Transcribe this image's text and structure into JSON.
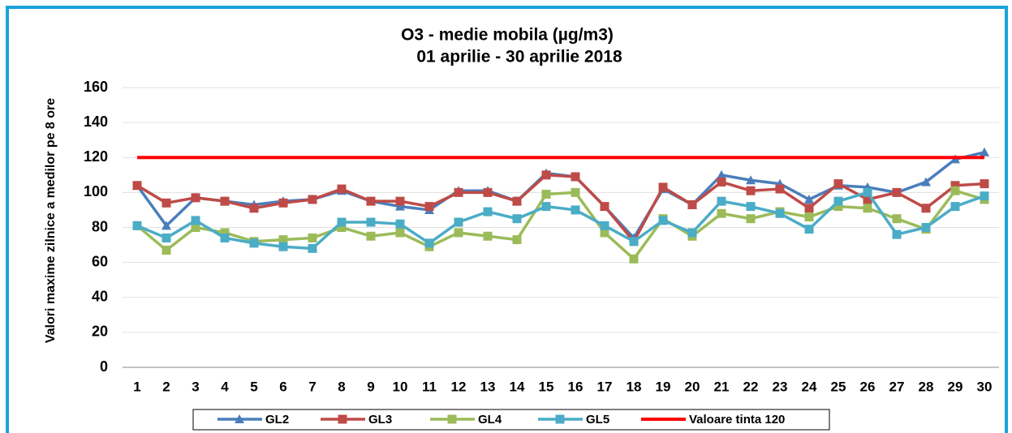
{
  "chart_data": {
    "type": "line",
    "title": "O3 - medie mobila (µg/m3)",
    "subtitle": "01 aprilie - 30 aprilie 2018",
    "y_label": "Valori maxime zilnice a medilor pe 8 ore",
    "categories": [
      "1",
      "2",
      "3",
      "4",
      "5",
      "6",
      "7",
      "8",
      "9",
      "10",
      "11",
      "12",
      "13",
      "14",
      "15",
      "16",
      "17",
      "18",
      "19",
      "20",
      "21",
      "22",
      "23",
      "24",
      "25",
      "26",
      "27",
      "28",
      "29",
      "30"
    ],
    "ylim": [
      0,
      160
    ],
    "yticks": [
      0,
      20,
      40,
      60,
      80,
      100,
      120,
      140,
      160
    ],
    "grid": true,
    "legend": "bottom",
    "series": [
      {
        "name": "GL2",
        "color": "#4a7ebb",
        "marker": "triangle",
        "values": [
          104,
          81,
          97,
          95,
          93,
          95,
          96,
          101,
          95,
          92,
          90,
          101,
          101,
          95,
          111,
          109,
          92,
          74,
          102,
          93,
          110,
          107,
          105,
          96,
          104,
          103,
          100,
          106,
          119,
          123
        ]
      },
      {
        "name": "GL3",
        "color": "#be4b48",
        "marker": "square",
        "values": [
          104,
          94,
          97,
          95,
          91,
          94,
          96,
          102,
          95,
          95,
          92,
          100,
          100,
          95,
          110,
          109,
          92,
          72,
          103,
          93,
          106,
          101,
          102,
          91,
          105,
          96,
          100,
          91,
          104,
          105
        ]
      },
      {
        "name": "GL4",
        "color": "#9bbb59",
        "marker": "square",
        "values": [
          81,
          67,
          80,
          77,
          72,
          73,
          74,
          80,
          75,
          77,
          69,
          77,
          75,
          73,
          99,
          100,
          77,
          62,
          85,
          75,
          88,
          85,
          89,
          86,
          92,
          91,
          85,
          79,
          101,
          96
        ]
      },
      {
        "name": "GL5",
        "color": "#4bacc6",
        "marker": "square",
        "values": [
          81,
          74,
          84,
          74,
          71,
          69,
          68,
          83,
          83,
          82,
          71,
          83,
          89,
          85,
          92,
          90,
          81,
          72,
          84,
          77,
          95,
          92,
          88,
          79,
          95,
          100,
          76,
          80,
          92,
          98
        ]
      },
      {
        "name": "Valoare tinta 120",
        "color": "#ff0000",
        "marker": "none",
        "values": [
          120,
          120,
          120,
          120,
          120,
          120,
          120,
          120,
          120,
          120,
          120,
          120,
          120,
          120,
          120,
          120,
          120,
          120,
          120,
          120,
          120,
          120,
          120,
          120,
          120,
          120,
          120,
          120,
          120,
          120
        ]
      }
    ]
  }
}
